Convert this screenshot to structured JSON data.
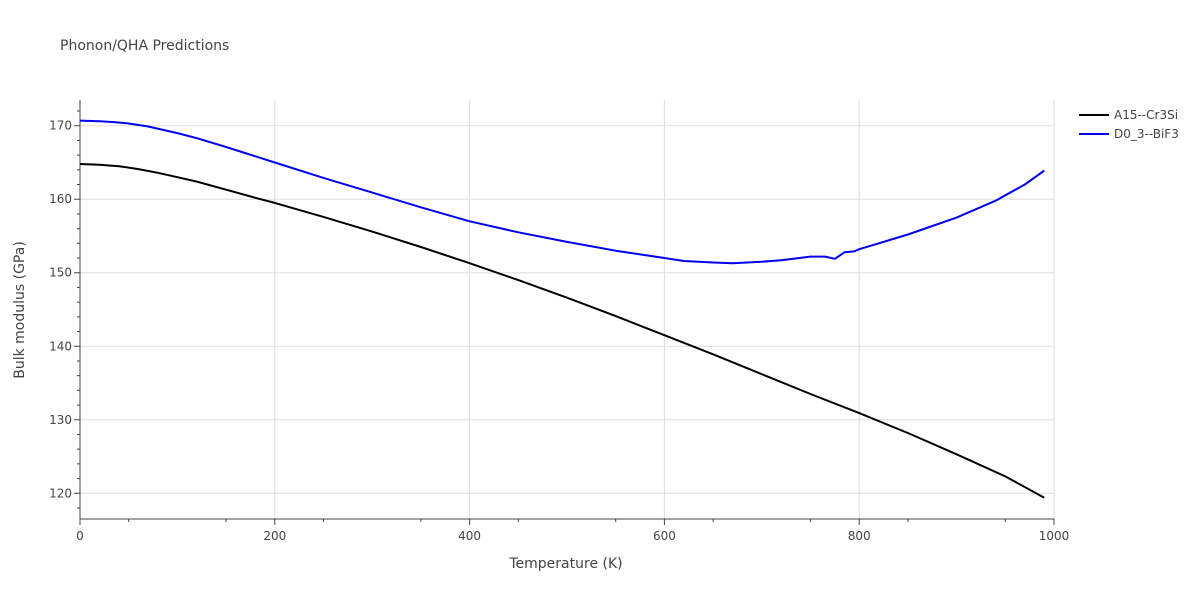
{
  "chart_data": {
    "type": "line",
    "title": "Phonon/QHA Predictions",
    "xlabel": "Temperature (K)",
    "ylabel": "Bulk modulus (GPa)",
    "xlim": [
      0,
      1000
    ],
    "ylim": [
      116.5,
      173.5
    ],
    "xticks": [
      0,
      200,
      400,
      600,
      800,
      1000
    ],
    "xtick_labels": [
      "0",
      "200",
      "400",
      "600",
      "800",
      "1000"
    ],
    "yticks": [
      120,
      130,
      140,
      150,
      160,
      170
    ],
    "ytick_labels": [
      "120",
      "130",
      "140",
      "150",
      "160",
      "170"
    ],
    "grid": true,
    "legend_position": "top-right",
    "series": [
      {
        "name": "A15--Cr3Si",
        "color": "#000000",
        "x": [
          0,
          20,
          40,
          60,
          80,
          100,
          120,
          150,
          180,
          200,
          250,
          300,
          350,
          400,
          450,
          500,
          550,
          600,
          650,
          700,
          750,
          800,
          850,
          900,
          950,
          990
        ],
        "y": [
          164.8,
          164.7,
          164.5,
          164.1,
          163.6,
          163.0,
          162.4,
          161.3,
          160.2,
          159.5,
          157.6,
          155.6,
          153.5,
          151.3,
          149.0,
          146.6,
          144.1,
          141.5,
          138.9,
          136.2,
          133.5,
          130.9,
          128.2,
          125.3,
          122.3,
          119.4
        ]
      },
      {
        "name": "D0_3--BiF3",
        "color": "#0000ee",
        "x": [
          0,
          20,
          35,
          50,
          70,
          100,
          120,
          150,
          200,
          250,
          300,
          350,
          400,
          450,
          500,
          550,
          600,
          620,
          650,
          670,
          700,
          720,
          750,
          765,
          775,
          785,
          795,
          800,
          810,
          850,
          900,
          940,
          970,
          990
        ],
        "y": [
          170.7,
          170.6,
          170.5,
          170.3,
          169.9,
          169.0,
          168.3,
          167.1,
          165.0,
          162.9,
          160.9,
          158.9,
          157.0,
          155.5,
          154.2,
          153.0,
          152.0,
          151.6,
          151.4,
          151.3,
          151.5,
          151.7,
          152.2,
          152.2,
          151.9,
          152.8,
          152.9,
          153.2,
          153.6,
          155.2,
          157.5,
          159.8,
          162.0,
          163.9
        ]
      }
    ]
  }
}
